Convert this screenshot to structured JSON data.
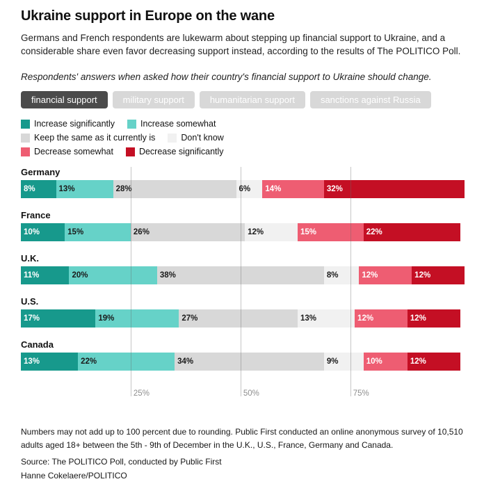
{
  "header": {
    "title": "Ukraine support in Europe on the wane",
    "dek": "Germans and French respondents are lukewarm about stepping up financial support to Ukraine, and a considerable share even favor decreasing support instead, according to the results of The POLITICO Poll.",
    "question": "Respondents' answers when asked how their country's financial support to Ukraine should change."
  },
  "tabs": [
    {
      "label": "financial support",
      "active": true
    },
    {
      "label": "military support",
      "active": false
    },
    {
      "label": "humanitarian support",
      "active": false
    },
    {
      "label": "sanctions against Russia",
      "active": false
    }
  ],
  "colors": {
    "active_tab_bg": "#4b4b4b",
    "inactive_tab_bg": "#d8d8d8",
    "tab_text": "#ffffff",
    "grid_line": "#6a6a6a",
    "tick_text": "#8e8e8e"
  },
  "chart_data": {
    "type": "bar",
    "orientation": "horizontal",
    "stacked": true,
    "unit": "%",
    "axis_max": 101,
    "x_ticks": [
      "25%",
      "50%",
      "75%"
    ],
    "x_tick_values": [
      25,
      50,
      75
    ],
    "categories": [
      "Germany",
      "France",
      "U.K.",
      "U.S.",
      "Canada"
    ],
    "series": [
      {
        "name": "Increase significantly",
        "color": "#17998c",
        "label_color": "#ffffff",
        "values": [
          8,
          10,
          11,
          17,
          13
        ]
      },
      {
        "name": "Increase somewhat",
        "color": "#66d2c8",
        "label_color": "#1a1a1a",
        "values": [
          13,
          15,
          20,
          19,
          22
        ]
      },
      {
        "name": "Keep the same as it currently is",
        "color": "#d8d8d8",
        "label_color": "#1a1a1a",
        "values": [
          28,
          26,
          38,
          27,
          34
        ]
      },
      {
        "name": "Don't know",
        "color": "#f1f1f1",
        "label_color": "#1a1a1a",
        "values": [
          6,
          12,
          8,
          13,
          9
        ]
      },
      {
        "name": "Decrease somewhat",
        "color": "#ee5d72",
        "label_color": "#ffffff",
        "values": [
          14,
          15,
          12,
          12,
          10
        ]
      },
      {
        "name": "Decrease significantly",
        "color": "#c40f24",
        "label_color": "#ffffff",
        "values": [
          32,
          22,
          12,
          12,
          12
        ]
      }
    ],
    "legend_pairs_per_row": 2
  },
  "footer": {
    "note": "Numbers may not add up to 100 percent due to rounding. Public First conducted an online anonymous survey of 10,510 adults aged 18+ between the 5th - 9th of December in the U.K., U.S., France, Germany and Canada.",
    "source": "Source: The POLITICO Poll, conducted by Public First",
    "byline": "Hanne Cokelaere/POLITICO"
  }
}
